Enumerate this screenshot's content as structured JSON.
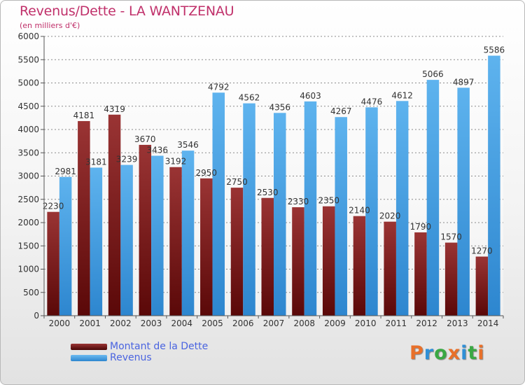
{
  "header": {
    "title": "Revenus/Dette - LA WANTZENAU",
    "subtitle": "(en milliers d'€)"
  },
  "legend": {
    "items": [
      {
        "label": "Montant de la Dette",
        "color": "#7a1c1c"
      },
      {
        "label": "Revenus",
        "color": "#4aa3e6"
      }
    ]
  },
  "logo": {
    "text": "Proxiti",
    "colors": [
      "#e8702a",
      "#2f8fd6",
      "#3aa844",
      "#e8702a",
      "#2f8fd6",
      "#3aa844",
      "#e8702a"
    ]
  },
  "chart_data": {
    "type": "bar",
    "title": "Revenus/Dette - LA WANTZENAU",
    "subtitle": "(en milliers d'€)",
    "categories": [
      "2000",
      "2001",
      "2002",
      "2003",
      "2004",
      "2005",
      "2006",
      "2007",
      "2008",
      "2009",
      "2010",
      "2011",
      "2012",
      "2013",
      "2014"
    ],
    "series": [
      {
        "name": "Montant de la Dette",
        "color": "#7a1c1c",
        "values": [
          2230,
          4181,
          4319,
          3670,
          3192,
          2950,
          2750,
          2530,
          2330,
          2350,
          2140,
          2020,
          1790,
          1570,
          1270
        ],
        "labels": [
          "2230",
          "4181",
          "4319",
          "3670",
          "3192",
          "2950",
          "2750",
          "2530",
          "2330",
          "2350",
          "2140",
          "2020",
          "1790",
          "1570",
          "1270"
        ]
      },
      {
        "name": "Revenus",
        "color": "#4aa3e6",
        "values": [
          2981,
          3181,
          3239,
          3436,
          3546,
          4792,
          4562,
          4356,
          4603,
          4267,
          4476,
          4612,
          5066,
          4897,
          5586
        ],
        "labels": [
          "2981",
          "3181",
          "3239",
          "3436",
          "3546",
          "4792",
          "4562",
          "4356",
          "4603",
          "4267",
          "4476",
          "4612",
          "5066",
          "4897",
          "5586"
        ]
      }
    ],
    "ylim": [
      0,
      6000
    ],
    "yticks": [
      0,
      500,
      1000,
      1500,
      2000,
      2500,
      3000,
      3500,
      4000,
      4500,
      5000,
      5500,
      6000
    ],
    "grid": true,
    "legend_position": "bottom-left"
  }
}
